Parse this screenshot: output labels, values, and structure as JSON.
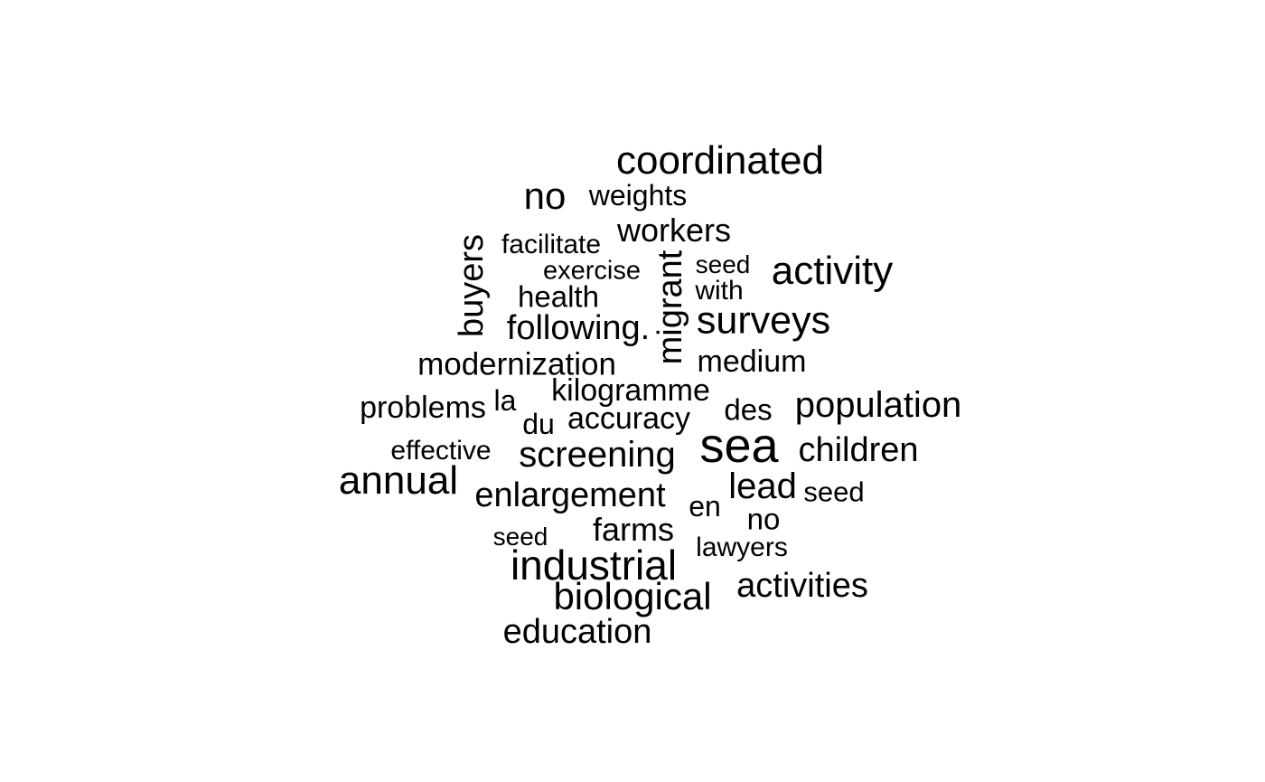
{
  "word_cloud": {
    "words": [
      {
        "text": "coordinated",
        "rotated": false
      },
      {
        "text": "no",
        "rotated": false
      },
      {
        "text": "weights",
        "rotated": false
      },
      {
        "text": "workers",
        "rotated": false
      },
      {
        "text": "facilitate",
        "rotated": false
      },
      {
        "text": "buyers",
        "rotated": true
      },
      {
        "text": "exercise",
        "rotated": false
      },
      {
        "text": "migrant",
        "rotated": true
      },
      {
        "text": "seed",
        "rotated": false
      },
      {
        "text": "activity",
        "rotated": false
      },
      {
        "text": "health",
        "rotated": false
      },
      {
        "text": "with",
        "rotated": false
      },
      {
        "text": "following.",
        "rotated": false
      },
      {
        "text": "surveys",
        "rotated": false
      },
      {
        "text": "modernization",
        "rotated": false
      },
      {
        "text": "medium",
        "rotated": false
      },
      {
        "text": "kilogramme",
        "rotated": false
      },
      {
        "text": "problems",
        "rotated": false
      },
      {
        "text": "la",
        "rotated": false
      },
      {
        "text": "des",
        "rotated": false
      },
      {
        "text": "population",
        "rotated": false
      },
      {
        "text": "du",
        "rotated": false
      },
      {
        "text": "accuracy",
        "rotated": false
      },
      {
        "text": "sea",
        "rotated": false
      },
      {
        "text": "effective",
        "rotated": false
      },
      {
        "text": "screening",
        "rotated": false
      },
      {
        "text": "children",
        "rotated": false
      },
      {
        "text": "annual",
        "rotated": false
      },
      {
        "text": "enlargement",
        "rotated": false
      },
      {
        "text": "lead",
        "rotated": false
      },
      {
        "text": "seed",
        "rotated": false
      },
      {
        "text": "en",
        "rotated": false
      },
      {
        "text": "no",
        "rotated": false
      },
      {
        "text": "farms",
        "rotated": false
      },
      {
        "text": "seed",
        "rotated": false
      },
      {
        "text": "lawyers",
        "rotated": false
      },
      {
        "text": "industrial",
        "rotated": false
      },
      {
        "text": "activities",
        "rotated": false
      },
      {
        "text": "biological",
        "rotated": false
      },
      {
        "text": "education",
        "rotated": false
      }
    ]
  }
}
